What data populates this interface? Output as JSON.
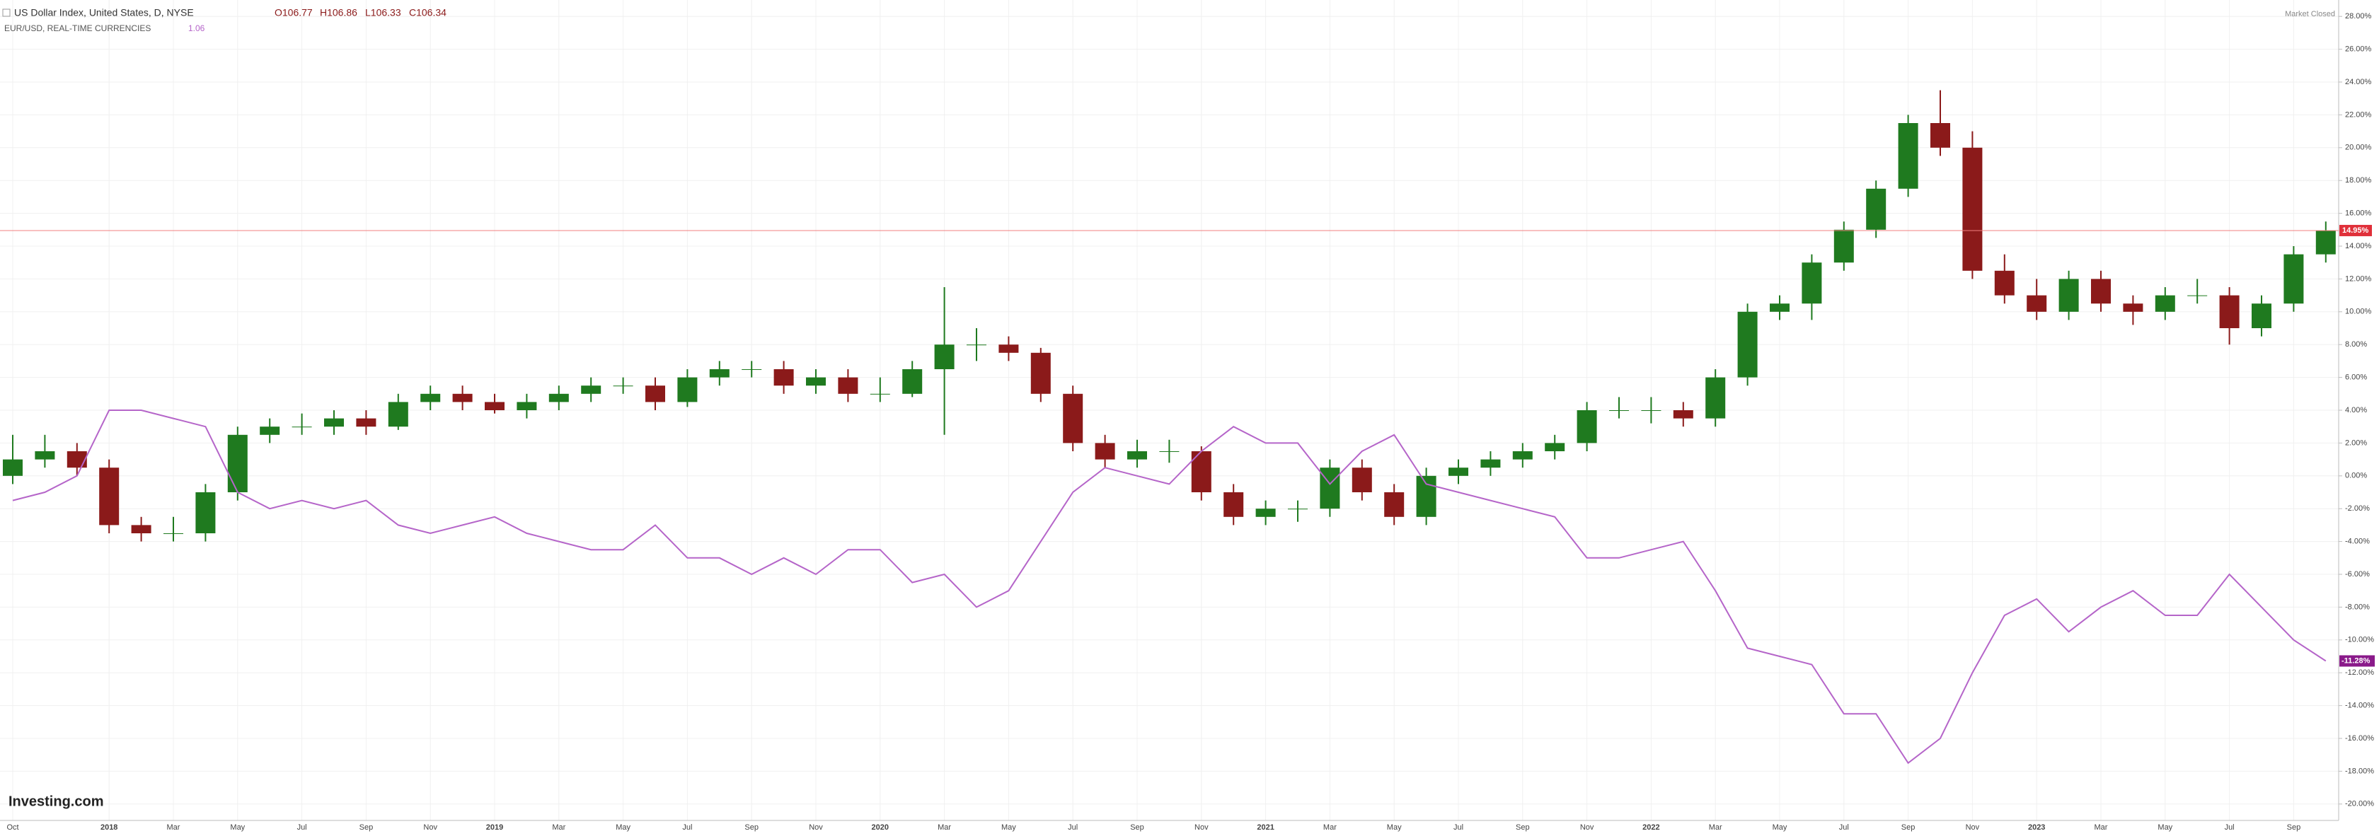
{
  "chart_data": {
    "type": "candlestick-compare",
    "header": {
      "symbol": "US Dollar Index, United States, D, NYSE",
      "open": "O106.77",
      "high": "H106.86",
      "low": "L106.33",
      "close": "C106.34",
      "compare_symbol": "EUR/USD, REAL-TIME CURRENCIES",
      "compare_value": "1.06",
      "status": "Market Closed",
      "logo": "Investing.com"
    },
    "categories": [
      "Oct",
      null,
      null,
      "2018",
      null,
      "Mar",
      null,
      "May",
      null,
      "Jul",
      null,
      "Sep",
      null,
      "Nov",
      null,
      "2019",
      null,
      "Mar",
      null,
      "May",
      null,
      "Jul",
      null,
      "Sep",
      null,
      "Nov",
      null,
      "2020",
      null,
      "Mar",
      null,
      "May",
      null,
      "Jul",
      null,
      "Sep",
      null,
      "Nov",
      null,
      "2021",
      null,
      "Mar",
      null,
      "May",
      null,
      "Jul",
      null,
      "Sep",
      null,
      "Nov",
      null,
      "2022",
      null,
      "Mar",
      null,
      "May",
      null,
      "Jul",
      null,
      "Sep",
      null,
      "Nov",
      null,
      "2023",
      null,
      "Mar",
      null,
      "May",
      null,
      "Jul",
      null,
      "Sep",
      null
    ],
    "series": [
      {
        "name": "US Dollar Index",
        "up_color": "#1f7a1f",
        "down_color": "#8b1a1a",
        "open": [
          0,
          1,
          1.5,
          0.5,
          -3,
          -3.5,
          -3.5,
          -1,
          2.5,
          3,
          3,
          3.5,
          3,
          4.5,
          5,
          4.5,
          4,
          4.5,
          5,
          5.5,
          5.5,
          4.5,
          6,
          6.5,
          6.5,
          5.5,
          6,
          5,
          5,
          6.5,
          8,
          8,
          7.5,
          5,
          2,
          1,
          1.5,
          1.5,
          -1,
          -2.5,
          -2,
          -2,
          0.5,
          -1,
          -2.5,
          0,
          0.5,
          1,
          1.5,
          2,
          4,
          4,
          4,
          3.5,
          6,
          10,
          10.5,
          13,
          15,
          17.5,
          21.5,
          20,
          12.5,
          11,
          10,
          12,
          10.5,
          10,
          11,
          11,
          9,
          10.5,
          13.5
        ],
        "high": [
          2.5,
          2.5,
          2,
          1,
          -2.5,
          -2.5,
          -0.5,
          3,
          3.5,
          3.8,
          4,
          4,
          5,
          5.5,
          5.5,
          5,
          5,
          5.5,
          6,
          6,
          6,
          6.5,
          7,
          7,
          7,
          6.5,
          6.5,
          6,
          7,
          11.5,
          9,
          8.5,
          7.8,
          5.5,
          2.5,
          2.2,
          2.2,
          1.8,
          -0.5,
          -1.5,
          -1.5,
          1,
          1,
          -0.5,
          0.5,
          1,
          1.5,
          2,
          2.5,
          4.5,
          4.8,
          4.8,
          4.5,
          6.5,
          10.5,
          11,
          13.5,
          15.5,
          18,
          22,
          23.5,
          21,
          13.5,
          12,
          12.5,
          12.5,
          11,
          11.5,
          12,
          11.5,
          11,
          14,
          15.5
        ],
        "low": [
          -0.5,
          0.5,
          0,
          -3.5,
          -4,
          -4,
          -4,
          -1.5,
          2,
          2.5,
          2.5,
          2.5,
          2.8,
          4,
          4,
          3.8,
          3.5,
          4,
          4.5,
          5,
          4,
          4.2,
          5.5,
          6,
          5,
          5,
          4.5,
          4.5,
          4.8,
          2.5,
          7,
          7,
          4.5,
          1.5,
          0.5,
          0.5,
          0.8,
          -1.5,
          -3,
          -3,
          -2.8,
          -2.5,
          -1.5,
          -3,
          -3,
          -0.5,
          0,
          0.5,
          1,
          1.5,
          3.5,
          3.2,
          3,
          3,
          5.5,
          9.5,
          9.5,
          12.5,
          14.5,
          17,
          19.5,
          12,
          10.5,
          9.5,
          9.5,
          10,
          9.2,
          9.5,
          10.5,
          8,
          8.5,
          10,
          13
        ],
        "close": [
          1,
          1.5,
          0.5,
          -3,
          -3.5,
          -3.5,
          -1,
          2.5,
          3,
          3,
          3.5,
          3,
          4.5,
          5,
          4.5,
          4,
          4.5,
          5,
          5.5,
          5.5,
          4.5,
          6,
          6.5,
          6.5,
          5.5,
          6,
          5,
          5,
          6.5,
          8,
          8,
          7.5,
          5,
          2,
          1,
          1.5,
          1.5,
          -1,
          -2.5,
          -2,
          -2,
          0.5,
          -1,
          -2.5,
          0,
          0.5,
          1,
          1.5,
          2,
          4,
          4,
          4,
          3.5,
          6,
          10,
          10.5,
          13,
          15,
          17.5,
          21.5,
          20,
          12.5,
          11,
          10,
          12,
          10.5,
          10,
          11,
          11,
          9,
          10.5,
          13.5,
          14.95
        ],
        "last_value": {
          "value": 14.95,
          "label": "14.95%"
        }
      },
      {
        "name": "EUR/USD",
        "color": "#b565c9",
        "values": [
          -1.5,
          -1,
          0,
          4,
          4,
          3.5,
          3,
          -1,
          -2,
          -1.5,
          -2,
          -1.5,
          -3,
          -3.5,
          -3,
          -2.5,
          -3.5,
          -4,
          -4.5,
          -4.5,
          -3,
          -5,
          -5,
          -6,
          -5,
          -6,
          -4.5,
          -4.5,
          -6.5,
          -6,
          -8,
          -7,
          -4,
          -1,
          0.5,
          0,
          -0.5,
          1.5,
          3,
          2,
          2,
          -0.5,
          1.5,
          2.5,
          -0.5,
          -1,
          -1.5,
          -2,
          -2.5,
          -5,
          -5,
          -4.5,
          -4,
          -7,
          -10.5,
          -11,
          -11.5,
          -14.5,
          -14.5,
          -17.5,
          -16,
          -12,
          -8.5,
          -7.5,
          -9.5,
          -8,
          -7,
          -8.5,
          -8.5,
          -6,
          -8,
          -10,
          -11.28
        ],
        "last_value": {
          "value": -11.28,
          "label": "-11.28%"
        }
      }
    ],
    "ylim": [
      -21,
      29
    ],
    "yticks": [
      {
        "value": -20,
        "label": "-20.00%"
      },
      {
        "value": -18,
        "label": "-18.00%"
      },
      {
        "value": -16,
        "label": "-16.00%"
      },
      {
        "value": -14,
        "label": "-14.00%"
      },
      {
        "value": -12,
        "label": "-12.00%"
      },
      {
        "value": -10,
        "label": "-10.00%"
      },
      {
        "value": -8,
        "label": "-8.00%"
      },
      {
        "value": -6,
        "label": "-6.00%"
      },
      {
        "value": -4,
        "label": "-4.00%"
      },
      {
        "value": -2,
        "label": "-2.00%"
      },
      {
        "value": 0,
        "label": "0.00%"
      },
      {
        "value": 2,
        "label": "2.00%"
      },
      {
        "value": 4,
        "label": "4.00%"
      },
      {
        "value": 6,
        "label": "6.00%"
      },
      {
        "value": 8,
        "label": "8.00%"
      },
      {
        "value": 10,
        "label": "10.00%"
      },
      {
        "value": 12,
        "label": "12.00%"
      },
      {
        "value": 14,
        "label": "14.00%"
      },
      {
        "value": 16,
        "label": "16.00%"
      },
      {
        "value": 18,
        "label": "18.00%"
      },
      {
        "value": 20,
        "label": "20.00%"
      },
      {
        "value": 22,
        "label": "22.00%"
      },
      {
        "value": 24,
        "label": "24.00%"
      },
      {
        "value": 26,
        "label": "26.00%"
      },
      {
        "value": 28,
        "label": "28.00%"
      }
    ],
    "grid": true
  }
}
